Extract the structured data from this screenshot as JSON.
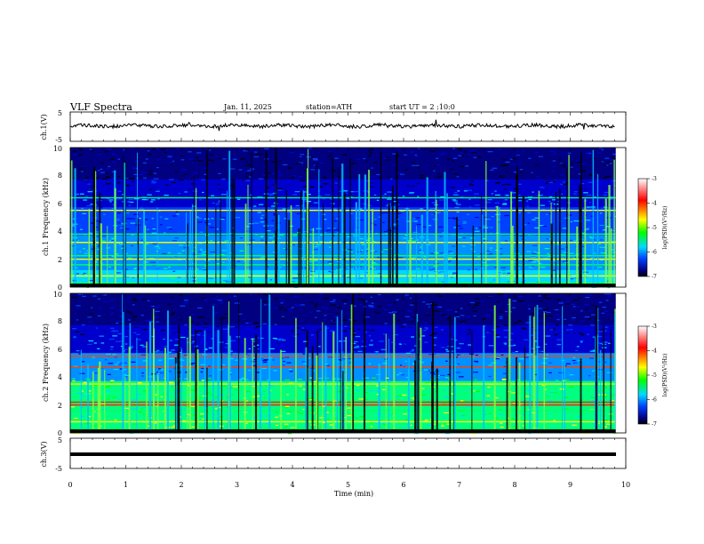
{
  "header": {
    "title": "VLF Spectra",
    "date": "Jan. 11, 2025",
    "station": "station=ATH",
    "start": "start UT = 2 :10:0"
  },
  "colorbar": {
    "label": "log(PSD)(V²/Hz)",
    "ticks": [
      "-3",
      "-4",
      "-5",
      "-6",
      "-7"
    ],
    "colors": [
      "#ffffff",
      "#ff0000",
      "#ffff00",
      "#00ff00",
      "#00d8ff",
      "#0040ff",
      "#000080",
      "#000000"
    ]
  },
  "chart_data": [
    {
      "type": "line",
      "name": "ch1-waveform",
      "ylabel": "ch.1(V)",
      "ylim": [
        -5,
        5
      ],
      "yticks": [
        "5",
        "-5"
      ],
      "xlim": [
        0,
        10
      ],
      "description_values": {
        "baseline_V": 0.3,
        "amplitude_V": 1.2
      }
    },
    {
      "type": "heatmap",
      "name": "ch1-spectrogram",
      "ylabel": "ch.1 Frequency (kHz)",
      "ylim": [
        0,
        10
      ],
      "yticks": [
        "0",
        "2",
        "4",
        "6",
        "8",
        "10"
      ],
      "xlim": [
        0,
        10
      ],
      "clim": [
        -7,
        -3
      ],
      "persistent_lines_kHz": [
        0.3,
        0.8,
        1.6,
        2.0,
        2.25,
        3.2,
        3.8,
        5.5,
        6.4
      ]
    },
    {
      "type": "heatmap",
      "name": "ch2-spectrogram",
      "ylabel": "ch.2 Frequency (kHz)",
      "ylim": [
        0,
        10
      ],
      "yticks": [
        "0",
        "2",
        "4",
        "6",
        "8",
        "10"
      ],
      "xlim": [
        0,
        10
      ],
      "clim": [
        -7,
        -3
      ],
      "persistent_lines_kHz": [
        0.3,
        0.8,
        1.6,
        2.0,
        2.2,
        3.5,
        4.7,
        5.5
      ]
    },
    {
      "type": "line",
      "name": "ch3-waveform",
      "ylabel": "ch.3(V)",
      "ylim": [
        -5,
        5
      ],
      "yticks": [
        "5",
        "0",
        "-5"
      ],
      "xlim": [
        0,
        10
      ],
      "xlabel": "Time (min)",
      "xticks": [
        "0",
        "1",
        "2",
        "3",
        "4",
        "5",
        "6",
        "7",
        "8",
        "9",
        "10"
      ],
      "description_values": {
        "baseline_V": 0.0
      }
    }
  ]
}
